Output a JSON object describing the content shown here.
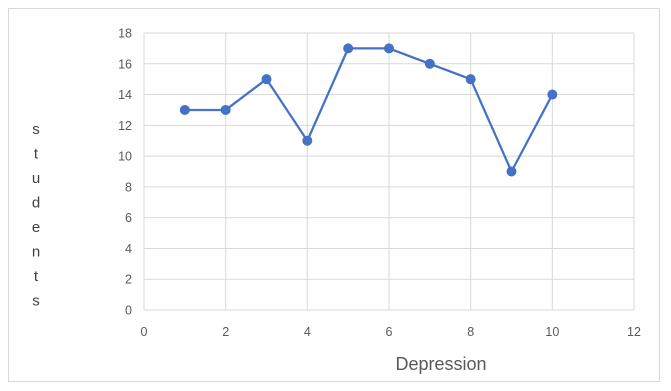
{
  "chart_data": {
    "type": "line",
    "title": "",
    "xlabel": "Depression",
    "ylabel": "students",
    "xlim": [
      0,
      12
    ],
    "ylim": [
      0,
      18
    ],
    "xticks": [
      0,
      2,
      4,
      6,
      8,
      10,
      12
    ],
    "yticks": [
      0,
      2,
      4,
      6,
      8,
      10,
      12,
      14,
      16,
      18
    ],
    "grid": true,
    "legend": "none",
    "color": "#4472C4",
    "gridColor": "#d9d9d9",
    "series": [
      {
        "x": [
          1,
          2,
          3,
          4,
          5,
          6,
          7,
          8,
          9,
          10
        ],
        "y": [
          13,
          13,
          15,
          11,
          17,
          17,
          16,
          15,
          9,
          14
        ]
      }
    ]
  }
}
